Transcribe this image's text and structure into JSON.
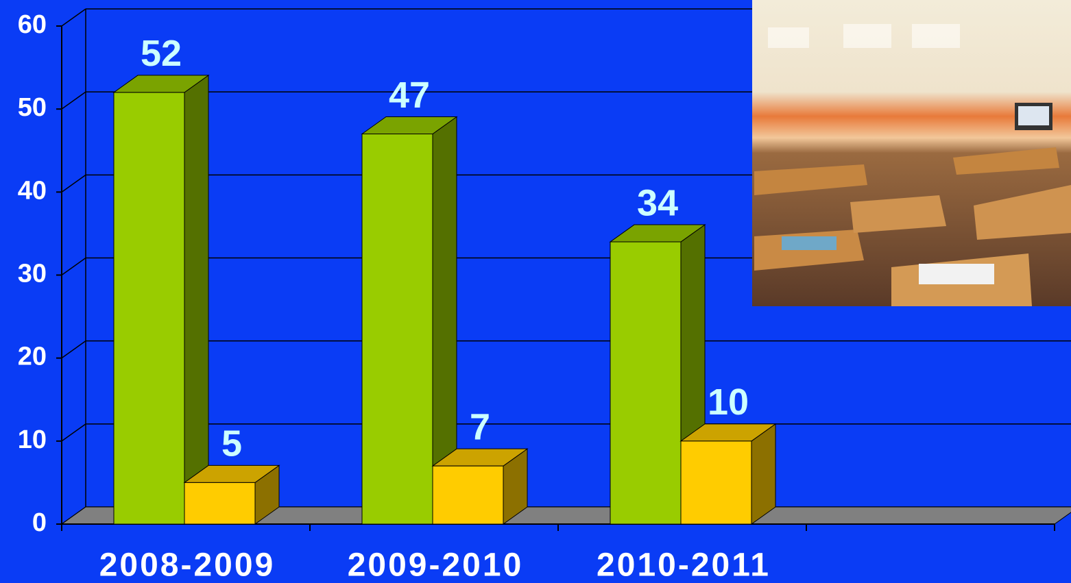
{
  "chart_data": {
    "type": "bar3d",
    "categories": [
      "2008-2009",
      "2009-2010",
      "2010-2011",
      null
    ],
    "series": [
      {
        "color": "#99cc00",
        "values": [
          52,
          47,
          34,
          null
        ]
      },
      {
        "color": "#ffcc00",
        "values": [
          5,
          7,
          10,
          null
        ]
      }
    ],
    "ylim": [
      0,
      60
    ],
    "yticks": [
      0,
      10,
      20,
      30,
      40,
      50,
      60
    ],
    "grid": true
  }
}
